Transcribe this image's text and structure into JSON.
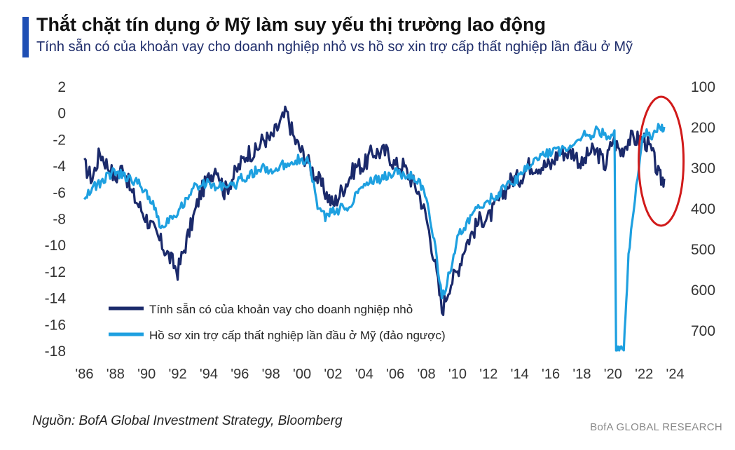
{
  "header": {
    "title": "Thắt chặt tín dụng ở Mỹ làm suy yếu thị trường lao động",
    "subtitle": "Tính sẵn có của khoản vay cho doanh nghiệp nhỏ vs hồ sơ xin trợ cấp thất nghiệp lần đầu ở Mỹ"
  },
  "footer": {
    "source": "Nguồn: BofA Global Investment Strategy, Bloomberg",
    "brand": "BofA GLOBAL RESEARCH"
  },
  "colors": {
    "series_dark": "#1b2a6b",
    "series_light": "#1ea0e0",
    "highlight_ellipse": "#d11a1a"
  },
  "chart_data": {
    "type": "line",
    "x_tick_labels": [
      "'86",
      "'88",
      "'90",
      "'92",
      "'94",
      "'96",
      "'98",
      "'00",
      "'02",
      "'04",
      "'06",
      "'08",
      "'10",
      "'12",
      "'14",
      "'16",
      "'18",
      "'20",
      "'22",
      "'24"
    ],
    "x_ticks": [
      1986,
      1988,
      1990,
      1992,
      1994,
      1996,
      1998,
      2000,
      2002,
      2004,
      2006,
      2008,
      2010,
      2012,
      2014,
      2016,
      2018,
      2020,
      2022,
      2024
    ],
    "xlim": [
      1985.8,
      2024.2
    ],
    "y_left": {
      "lim": [
        -18,
        2
      ],
      "ticks": [
        2,
        0,
        -2,
        -4,
        -6,
        -8,
        -10,
        -12,
        -14,
        -16,
        -18
      ]
    },
    "y_right": {
      "lim": [
        100,
        750
      ],
      "inverted": true,
      "ticks": [
        100,
        200,
        300,
        400,
        500,
        600,
        700
      ]
    },
    "legend_position": "bottom-left",
    "grid": false,
    "series": [
      {
        "name": "Tính sẵn có của khoản vay cho doanh nghiệp nhỏ",
        "axis": "left",
        "x": [
          1986,
          1986.5,
          1987,
          1987.5,
          1988,
          1988.5,
          1989,
          1989.5,
          1990,
          1990.5,
          1991,
          1991.5,
          1992,
          1992.5,
          1993,
          1993.5,
          1994,
          1994.5,
          1995,
          1995.5,
          1996,
          1996.5,
          1997,
          1997.5,
          1998,
          1998.5,
          1999,
          1999.5,
          2000,
          2000.5,
          2001,
          2001.5,
          2002,
          2002.5,
          2003,
          2003.5,
          2004,
          2004.5,
          2005,
          2005.5,
          2006,
          2006.5,
          2007,
          2007.5,
          2008,
          2008.5,
          2009,
          2009.5,
          2010,
          2010.5,
          2011,
          2011.5,
          2012,
          2012.5,
          2013,
          2013.5,
          2014,
          2014.5,
          2015,
          2015.5,
          2016,
          2016.5,
          2017,
          2017.5,
          2018,
          2018.5,
          2019,
          2019.5,
          2020,
          2020.5,
          2021,
          2021.5,
          2022,
          2022.5,
          2023,
          2023.3
        ],
        "values": [
          -4,
          -5,
          -3,
          -4,
          -5,
          -4,
          -6,
          -7,
          -8,
          -9,
          -10,
          -11,
          -12,
          -10,
          -8,
          -6,
          -5,
          -4,
          -6,
          -5,
          -4,
          -3,
          -3,
          -2,
          -2,
          -1,
          0,
          -2,
          -3,
          -4,
          -5,
          -6,
          -7,
          -6,
          -5,
          -4,
          -4,
          -3,
          -3,
          -3,
          -4,
          -4,
          -5,
          -6,
          -8,
          -11,
          -15,
          -13,
          -12,
          -10,
          -9,
          -8,
          -8,
          -7,
          -6,
          -5,
          -5,
          -4,
          -4,
          -4,
          -4,
          -3,
          -3,
          -3,
          -4,
          -3,
          -3,
          -4,
          -2,
          -3,
          -2,
          -2,
          -2,
          -3,
          -5,
          -5
        ]
      },
      {
        "name": "Hồ sơ xin trợ cấp thất nghiệp lần đầu ở Mỹ (đảo ngược)",
        "axis": "right",
        "x": [
          1986,
          1986.5,
          1987,
          1987.5,
          1988,
          1988.5,
          1989,
          1989.5,
          1990,
          1990.5,
          1991,
          1991.5,
          1992,
          1992.5,
          1993,
          1993.5,
          1994,
          1994.5,
          1995,
          1995.5,
          1996,
          1996.5,
          1997,
          1997.5,
          1998,
          1998.5,
          1999,
          1999.5,
          2000,
          2000.5,
          2001,
          2001.5,
          2002,
          2002.5,
          2003,
          2003.5,
          2004,
          2004.5,
          2005,
          2005.5,
          2006,
          2006.5,
          2007,
          2007.5,
          2008,
          2008.5,
          2009,
          2009.5,
          2010,
          2010.5,
          2011,
          2011.5,
          2012,
          2012.5,
          2013,
          2013.5,
          2014,
          2014.5,
          2015,
          2015.5,
          2016,
          2016.5,
          2017,
          2017.5,
          2018,
          2018.5,
          2019,
          2019.5,
          2020.1,
          2020.2,
          2020.4,
          2020.7,
          2021,
          2021.5,
          2022,
          2022.5,
          2023,
          2023.3
        ],
        "values": [
          370,
          350,
          340,
          320,
          310,
          320,
          330,
          340,
          360,
          400,
          450,
          420,
          410,
          380,
          350,
          340,
          340,
          350,
          340,
          350,
          330,
          320,
          310,
          300,
          310,
          300,
          290,
          280,
          280,
          290,
          400,
          420,
          410,
          400,
          400,
          360,
          340,
          330,
          330,
          320,
          310,
          320,
          320,
          330,
          380,
          480,
          620,
          560,
          470,
          450,
          410,
          400,
          380,
          370,
          350,
          340,
          320,
          300,
          280,
          270,
          260,
          260,
          250,
          240,
          220,
          220,
          210,
          220,
          220,
          750,
          750,
          750,
          520,
          350,
          210,
          230,
          200,
          200
        ]
      }
    ]
  }
}
